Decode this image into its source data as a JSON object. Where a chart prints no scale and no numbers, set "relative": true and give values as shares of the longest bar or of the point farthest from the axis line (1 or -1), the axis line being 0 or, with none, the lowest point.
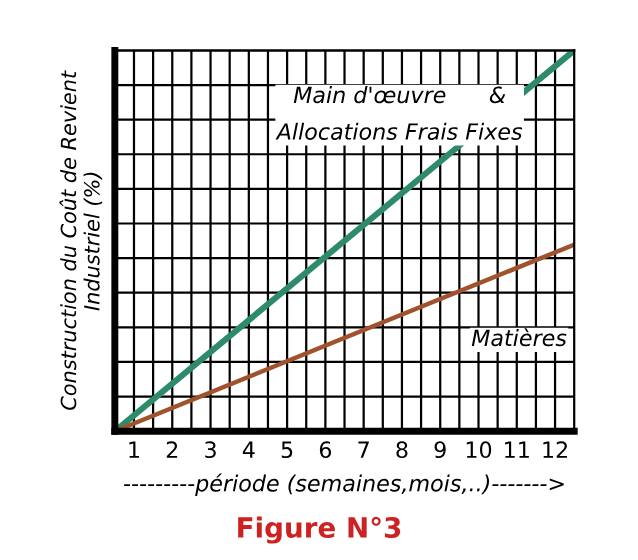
{
  "chart_data": {
    "type": "line",
    "relative": true,
    "title": "Figure N°3",
    "xlabel": "---------période (semaines,mois,..)------->",
    "ylabel": "Construction du Coût de Revient\nIndustriel (%)",
    "x": [
      0.5,
      12.5
    ],
    "xlim": [
      0.5,
      12.5
    ],
    "xticks": [
      {
        "value": 1,
        "label": "1"
      },
      {
        "value": 2,
        "label": "2"
      },
      {
        "value": 3,
        "label": "3"
      },
      {
        "value": 4,
        "label": "4"
      },
      {
        "value": 5,
        "label": "5"
      },
      {
        "value": 6,
        "label": "6"
      },
      {
        "value": 7,
        "label": "7"
      },
      {
        "value": 8,
        "label": "8"
      },
      {
        "value": 9,
        "label": "9"
      },
      {
        "value": 10,
        "label": "10"
      },
      {
        "value": 11,
        "label": "11"
      },
      {
        "value": 12,
        "label": "12"
      },
      {
        "value": 1.5,
        "label": null
      },
      {
        "value": 2.5,
        "label": null
      },
      {
        "value": 3.5,
        "label": null
      },
      {
        "value": 4.5,
        "label": null
      },
      {
        "value": 5.5,
        "label": null
      },
      {
        "value": 6.5,
        "label": null
      },
      {
        "value": 7.5,
        "label": null
      },
      {
        "value": 8.5,
        "label": null
      },
      {
        "value": 9.5,
        "label": null
      },
      {
        "value": 10.5,
        "label": null
      },
      {
        "value": 11.5,
        "label": null
      }
    ],
    "grid": true,
    "legend": false,
    "marker": "none",
    "line_style": "solid",
    "series": [
      {
        "name": "Main d'œuvre      &\nAllocations Frais Fixes",
        "color": "#2e8b6a",
        "values": [
          0,
          1
        ]
      },
      {
        "name": "Matières",
        "color": "#a0522d",
        "values": [
          0,
          0.49
        ]
      }
    ]
  }
}
